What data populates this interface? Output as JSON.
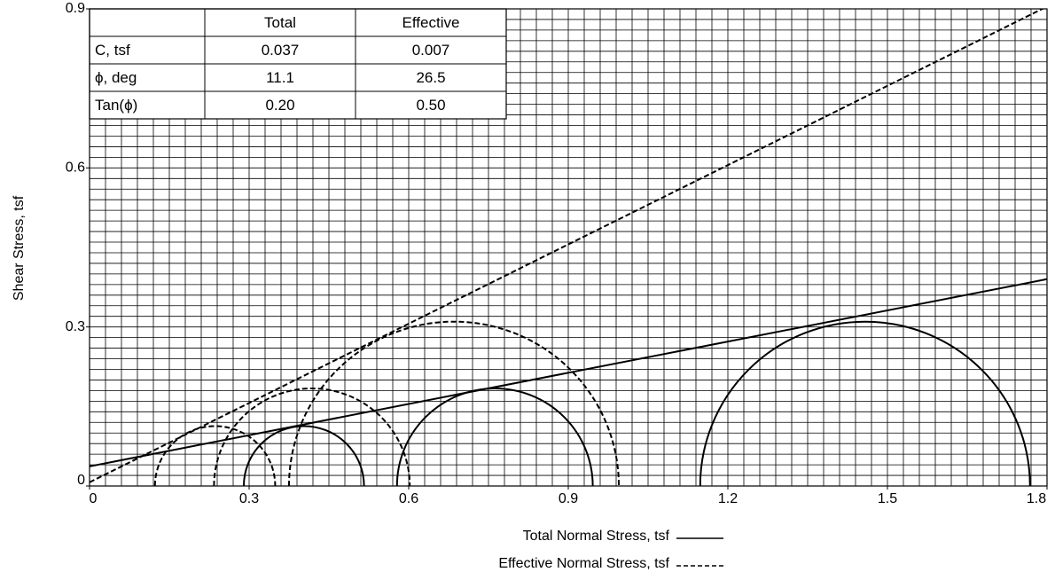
{
  "chart_data": {
    "type": "mohr",
    "ylabel": "Shear Stress, tsf",
    "xlim": [
      0,
      1.8
    ],
    "ylim": [
      0,
      0.9
    ],
    "xticks": [
      0,
      0.3,
      0.6,
      0.9,
      1.2,
      1.5,
      1.8
    ],
    "yticks": [
      0,
      0.3,
      0.6,
      0.9
    ],
    "minor_grid": {
      "x": 0.03,
      "y": 0.02
    },
    "series": [
      {
        "name": "Total Normal Stress, tsf",
        "color": "#000000",
        "dashed": false,
        "envelope": {
          "intercept": 0.037,
          "phi": 11.1
        },
        "circles": [
          {
            "center": 0.403,
            "radius": 0.113
          },
          {
            "center": 0.762,
            "radius": 0.184
          },
          {
            "center": 1.458,
            "radius": 0.31
          }
        ]
      },
      {
        "name": "Effective Normal Stress, tsf",
        "color": "#000000",
        "dashed": true,
        "envelope": {
          "intercept": 0.007,
          "phi": 26.5
        },
        "circles": [
          {
            "center": 0.236,
            "radius": 0.113
          },
          {
            "center": 0.418,
            "radius": 0.184
          },
          {
            "center": 0.685,
            "radius": 0.31
          }
        ]
      }
    ],
    "table": {
      "header": [
        "Total",
        "Effective"
      ],
      "rows": [
        [
          "C, tsf",
          "0.037",
          "0.007"
        ],
        [
          "ϕ, deg",
          "11.1",
          "26.5"
        ],
        [
          "Tan(ϕ)",
          "0.20",
          "0.50"
        ]
      ]
    }
  }
}
